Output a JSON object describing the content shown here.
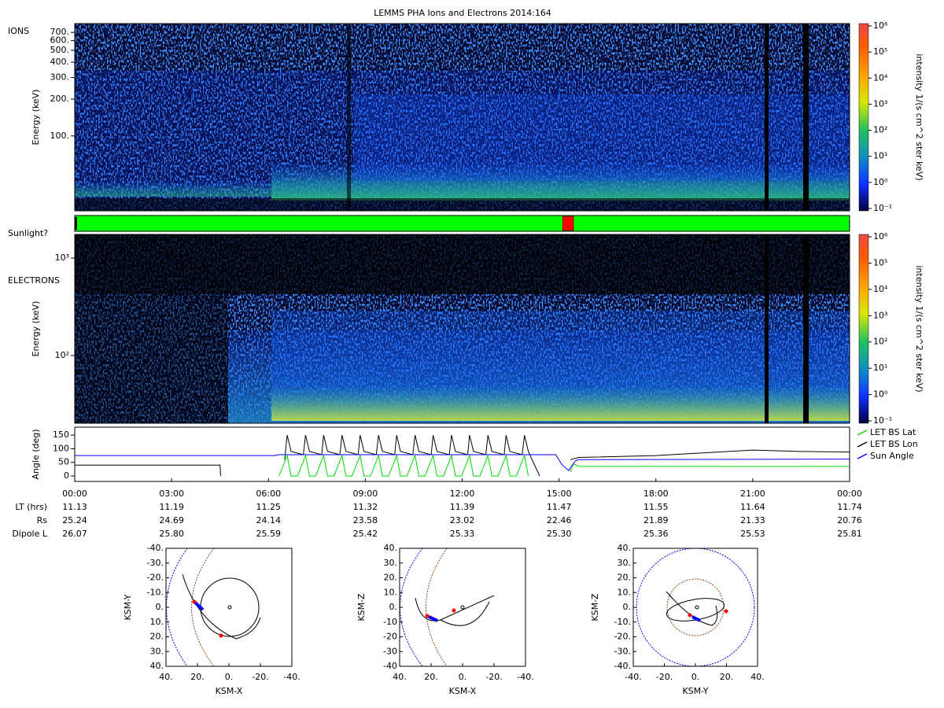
{
  "title": "LEMMS PHA Ions and Electrons  2014:164",
  "sunlight": {
    "label": "Sunlight?",
    "shadow": [
      15.11,
      15.45
    ]
  },
  "chart_data": [
    {
      "type": "spectrogram",
      "label": "IONS",
      "ylabel": "Energy (keV)",
      "ylog": true,
      "ylim": [
        24.5,
        826
      ],
      "yticks": [
        {
          "value": 100,
          "label": "100."
        },
        {
          "value": 200,
          "label": "200."
        },
        {
          "value": 300,
          "label": "300."
        },
        {
          "value": 400,
          "label": "400."
        },
        {
          "value": 500,
          "label": "500."
        },
        {
          "value": 600,
          "label": "600."
        },
        {
          "value": 700,
          "label": "700."
        }
      ],
      "colorbar": {
        "label": "intensity 1/(s cm^2 ster keV)",
        "log": true,
        "lim": [
          0.1,
          1000000
        ],
        "ticks": [
          {
            "value": 0.1,
            "label": "10⁻¹"
          },
          {
            "value": 1,
            "label": "10⁰"
          },
          {
            "value": 10,
            "label": "10¹"
          },
          {
            "value": 100,
            "label": "10²"
          },
          {
            "value": 1000,
            "label": "10³"
          },
          {
            "value": 10000,
            "label": "10⁴"
          },
          {
            "value": 100000,
            "label": "10⁵"
          },
          {
            "value": 1000000,
            "label": "10⁶"
          }
        ]
      }
    },
    {
      "type": "spectrogram",
      "label": "ELECTRONS",
      "ylabel": "Energy (keV)",
      "ylog": true,
      "ylim": [
        20.2,
        1746
      ],
      "yticks": [
        {
          "value": 100,
          "label": "10²"
        },
        {
          "value": 1000,
          "label": "10³"
        }
      ],
      "colorbar": {
        "label": "intensity 1/(s cm^2 ster keV)",
        "log": true,
        "lim": [
          0.1,
          1000000
        ],
        "ticks": [
          {
            "value": 0.1,
            "label": "10⁻¹"
          },
          {
            "value": 1,
            "label": "10⁰"
          },
          {
            "value": 10,
            "label": "10¹"
          },
          {
            "value": 100,
            "label": "10²"
          },
          {
            "value": 1000,
            "label": "10³"
          },
          {
            "value": 10000,
            "label": "10⁴"
          },
          {
            "value": 100000,
            "label": "10⁵"
          },
          {
            "value": 1000000,
            "label": "10⁶"
          }
        ]
      }
    },
    {
      "type": "line",
      "ylabel": "Angle (deg)",
      "ylim": [
        -20,
        179
      ],
      "yticks": [
        0,
        50,
        100,
        150
      ],
      "xlim": [
        0,
        24
      ],
      "xticks": [
        {
          "value": 0,
          "label": "00:00"
        },
        {
          "value": 3,
          "label": "03:00"
        },
        {
          "value": 6,
          "label": "06:00"
        },
        {
          "value": 9,
          "label": "09:00"
        },
        {
          "value": 12,
          "label": "12:00"
        },
        {
          "value": 15,
          "label": "15:00"
        },
        {
          "value": 18,
          "label": "18:00"
        },
        {
          "value": 21,
          "label": "21:00"
        },
        {
          "value": 24,
          "label": "00:00"
        }
      ],
      "series": [
        {
          "name": "LET BS Lat",
          "color": "#00dd00",
          "x": [
            6.33,
            6.58,
            6.7,
            6.9,
            7.15,
            7.27,
            7.46,
            7.71,
            7.83,
            8.03,
            8.28,
            8.4,
            8.59,
            8.84,
            8.96,
            9.16,
            9.41,
            9.53,
            9.72,
            9.97,
            10.09,
            10.29,
            10.54,
            10.66,
            10.85,
            11.1,
            11.22,
            11.42,
            11.67,
            11.79,
            11.98,
            12.23,
            12.35,
            12.55,
            12.8,
            12.92,
            13.11,
            13.36,
            13.48,
            13.68,
            13.93,
            14.05,
            14.06,
            15.35,
            15.45,
            15.6,
            24
          ],
          "values": [
            0,
            75,
            0,
            0,
            75,
            0,
            0,
            75,
            0,
            0,
            75,
            0,
            0,
            75,
            0,
            0,
            75,
            0,
            0,
            75,
            0,
            0,
            75,
            0,
            0,
            75,
            0,
            0,
            75,
            0,
            0,
            75,
            0,
            0,
            75,
            0,
            0,
            75,
            0,
            0,
            75,
            0,
            null,
            15,
            45,
            35,
            35
          ]
        },
        {
          "name": "LET BS Lon",
          "color": "#000000",
          "x": [
            0,
            4.5,
            4.52,
            4.6,
            6.5,
            6.58,
            6.7,
            7.08,
            7.15,
            7.27,
            7.65,
            7.71,
            7.83,
            8.21,
            8.28,
            8.4,
            8.78,
            8.84,
            8.96,
            9.34,
            9.41,
            9.53,
            9.91,
            9.97,
            10.09,
            10.47,
            10.54,
            10.66,
            11.04,
            11.1,
            11.22,
            11.6,
            11.67,
            11.79,
            12.17,
            12.23,
            12.35,
            12.73,
            12.8,
            12.92,
            13.3,
            13.36,
            13.48,
            13.86,
            13.93,
            14.05,
            14.4,
            14.5,
            15.35,
            15.6,
            18,
            21,
            22.5,
            24
          ],
          "values": [
            40,
            40,
            0,
            null,
            60,
            150,
            90,
            78,
            150,
            90,
            78,
            150,
            90,
            78,
            150,
            90,
            78,
            150,
            90,
            78,
            150,
            90,
            78,
            150,
            90,
            78,
            150,
            90,
            78,
            150,
            90,
            78,
            150,
            90,
            78,
            150,
            90,
            78,
            150,
            90,
            78,
            150,
            90,
            78,
            150,
            90,
            0,
            null,
            60,
            68,
            75,
            95,
            90,
            88
          ]
        },
        {
          "name": "Sun Angle",
          "color": "#0000ff",
          "x": [
            0,
            6.2,
            6.3,
            14.9,
            15.1,
            15.3,
            15.5,
            15.6,
            24
          ],
          "values": [
            75,
            75,
            78,
            78,
            40,
            20,
            55,
            60,
            62
          ]
        }
      ]
    },
    {
      "type": "orbit",
      "xlabel": "KSM-X",
      "ylabel": "KSM-Y",
      "xlim": [
        40,
        -40
      ],
      "ylim": [
        40,
        -40
      ],
      "xticks": [
        {
          "value": 40,
          "label": "40."
        },
        {
          "value": 20,
          "label": "20."
        },
        {
          "value": 0,
          "label": "0."
        },
        {
          "value": -20,
          "label": "-20."
        },
        {
          "value": -40,
          "label": "-40."
        }
      ],
      "yticks": [
        {
          "value": -40,
          "label": "-40."
        },
        {
          "value": -30,
          "label": "-30."
        },
        {
          "value": -20,
          "label": "-20."
        },
        {
          "value": -10,
          "label": "-10."
        },
        {
          "value": 0,
          "label": "0."
        },
        {
          "value": 10,
          "label": "10."
        },
        {
          "value": 20,
          "label": "20."
        },
        {
          "value": 30,
          "label": "30."
        },
        {
          "value": 40,
          "label": "40."
        }
      ]
    },
    {
      "type": "orbit",
      "xlabel": "KSM-X",
      "ylabel": "KSM-Z",
      "xlim": [
        40,
        -40
      ],
      "ylim": [
        -40,
        40
      ],
      "xticks": [
        {
          "value": 40,
          "label": "40."
        },
        {
          "value": 20,
          "label": "20."
        },
        {
          "value": 0,
          "label": "0."
        },
        {
          "value": -20,
          "label": "-20."
        },
        {
          "value": -40,
          "label": "-40."
        }
      ],
      "yticks": [
        {
          "value": 40,
          "label": "40."
        },
        {
          "value": 30,
          "label": "30."
        },
        {
          "value": 20,
          "label": "20."
        },
        {
          "value": 10,
          "label": "10."
        },
        {
          "value": 0,
          "label": "0."
        },
        -10,
        -20,
        -30,
        -40
      ]
    },
    {
      "type": "orbit",
      "xlabel": "KSM-Y",
      "ylabel": "KSM-Z",
      "xlim": [
        -40,
        40
      ],
      "ylim": [
        -40,
        40
      ],
      "xticks": [
        {
          "value": -40,
          "label": "-40."
        },
        {
          "value": -20,
          "label": "-20."
        },
        {
          "value": 0,
          "label": "0."
        },
        {
          "value": 20,
          "label": "20."
        },
        {
          "value": 40,
          "label": "40."
        }
      ],
      "yticks": [
        {
          "value": 40,
          "label": "40."
        },
        {
          "value": 30,
          "label": "30."
        },
        {
          "value": 20,
          "label": "20."
        },
        {
          "value": 10,
          "label": "10."
        },
        {
          "value": 0,
          "label": "0."
        },
        {
          "value": -10,
          "label": "-10."
        },
        {
          "value": -20,
          "label": "-20."
        },
        {
          "value": -30,
          "label": "-30."
        },
        {
          "value": -40,
          "label": "-40."
        }
      ]
    }
  ],
  "ephemeris": [
    {
      "label": "LT (hrs)",
      "values": [
        "11.13",
        "11.19",
        "11.25",
        "11.32",
        "11.39",
        "11.47",
        "11.55",
        "11.64",
        "11.74"
      ]
    },
    {
      "label": "Rs",
      "values": [
        "25.24",
        "24.69",
        "24.14",
        "23.58",
        "23.02",
        "22.46",
        "21.89",
        "21.33",
        "20.76"
      ]
    },
    {
      "label": "Dipole L",
      "values": [
        "26.07",
        "25.80",
        "25.59",
        "25.42",
        "25.33",
        "25.30",
        "25.36",
        "25.53",
        "25.81"
      ]
    }
  ]
}
